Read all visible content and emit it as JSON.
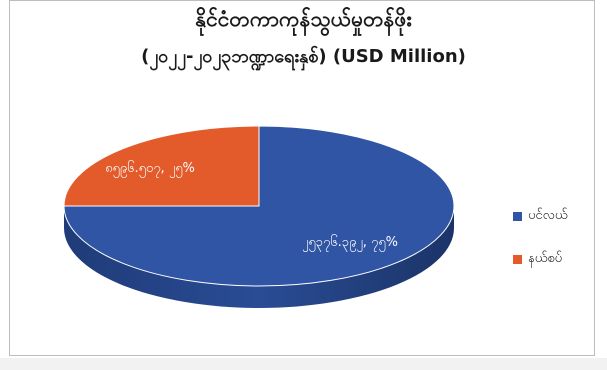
{
  "chart_data": {
    "type": "pie",
    "title": "နိုင်ငံတကာကုန်သွယ်မှုတန်ဖိုး",
    "subtitle": "(၂၀၂၂-၂၀၂၃ဘဏ္ဍာရေးနှစ်) (USD Million)",
    "slices": [
      {
        "name": "ပင်လယ်",
        "value": 75,
        "label": "၂၅၃၇၆.၃၉၂, ၇၅%",
        "color": "#2f55a4"
      },
      {
        "name": "နယ်စပ်",
        "value": 25,
        "label": "၈၅၉၆.၅၀၇, ၂၅%",
        "color": "#e35b2a"
      }
    ],
    "legend_position": "right"
  }
}
